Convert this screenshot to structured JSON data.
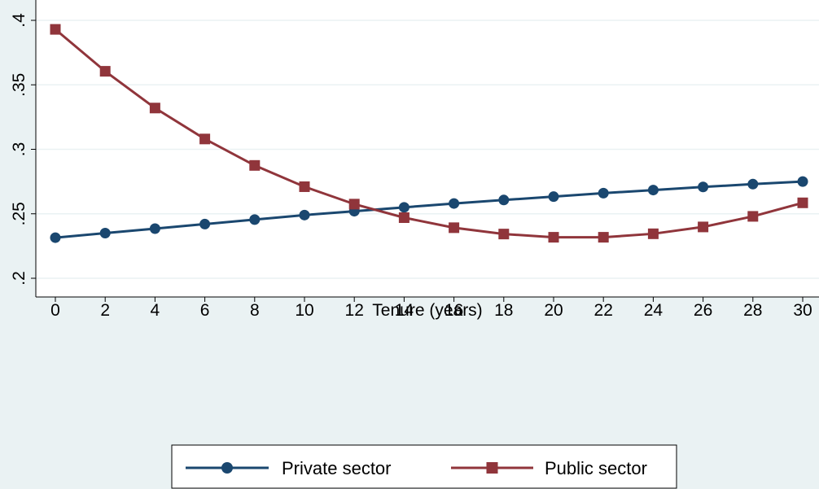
{
  "chart_data": {
    "type": "line",
    "title": "",
    "xlabel": "Tenure (years)",
    "ylabel": "",
    "x": [
      0,
      2,
      4,
      6,
      8,
      10,
      12,
      14,
      16,
      18,
      20,
      22,
      24,
      26,
      28,
      30
    ],
    "xlim": [
      0,
      30
    ],
    "ylim": [
      0.2,
      0.4
    ],
    "x_ticks": [
      0,
      2,
      4,
      6,
      8,
      10,
      12,
      14,
      16,
      18,
      20,
      22,
      24,
      26,
      28,
      30
    ],
    "y_ticks": [
      0.2,
      0.25,
      0.3,
      0.35,
      0.4
    ],
    "y_tick_labels": [
      ".2",
      ".25",
      ".3",
      ".35",
      ".4"
    ],
    "grid": true,
    "legend_position": "bottom",
    "series": [
      {
        "name": "Private sector",
        "color": "#1a476f",
        "marker": "circle",
        "values": [
          0.2315,
          0.235,
          0.2385,
          0.242,
          0.2455,
          0.249,
          0.252,
          0.255,
          0.258,
          0.2607,
          0.2633,
          0.266,
          0.2684,
          0.2708,
          0.273,
          0.275
        ]
      },
      {
        "name": "Public sector",
        "color": "#90353b",
        "marker": "square",
        "values": [
          0.393,
          0.3605,
          0.332,
          0.308,
          0.2875,
          0.271,
          0.2575,
          0.247,
          0.2392,
          0.2343,
          0.2318,
          0.2318,
          0.2345,
          0.2398,
          0.248,
          0.2585
        ]
      }
    ]
  }
}
